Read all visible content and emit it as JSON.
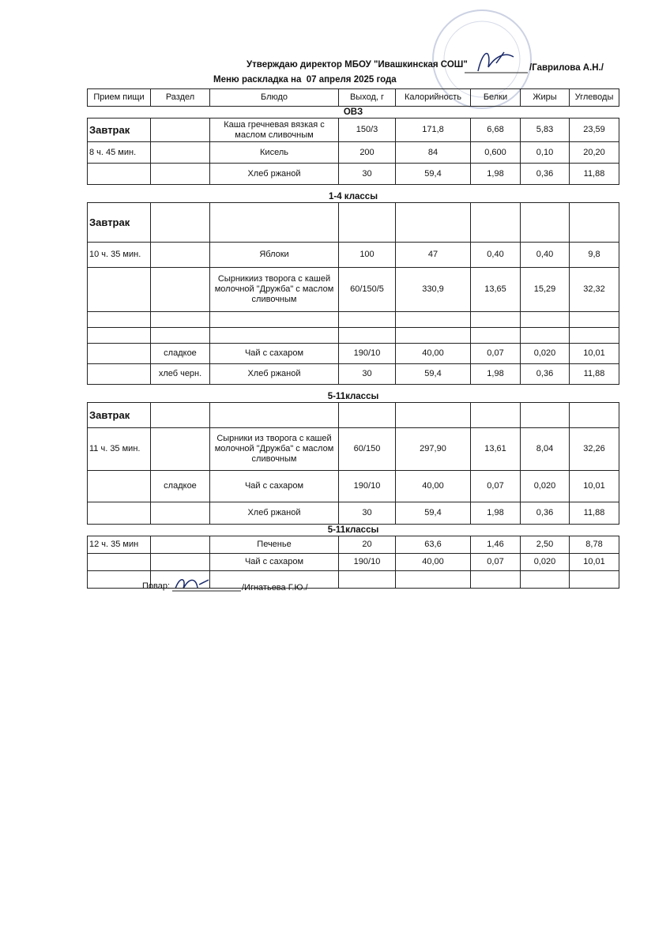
{
  "header": {
    "approval": "Утверждаю директор МБОУ \"Ивашкинская СОШ\"",
    "approver": "/Гаврилова А.Н./",
    "title": "Меню раскладка на  07 апреля 2025 года"
  },
  "columns": [
    "Прием пищи",
    "Раздел",
    "Блюдо",
    "Выход, г",
    "Калорийность",
    "Белки",
    "Жиры",
    "Углеводы"
  ],
  "sections": [
    {
      "title": "ОВЗ",
      "rows": [
        [
          "Завтрак",
          null,
          "Каша гречневая вязкая с маслом сливочным",
          "150/3",
          "171,8",
          "6,68",
          "5,83",
          "23,59"
        ],
        [
          "8 ч. 45 мин.",
          null,
          "Кисель",
          "200",
          "84",
          "0,600",
          "0,10",
          "20,20"
        ],
        [
          null,
          null,
          "Хлеб ржаной",
          "30",
          "59,4",
          "1,98",
          "0,36",
          "11,88"
        ]
      ]
    },
    {
      "title": "1-4 классы",
      "rows": [
        [
          "Завтрак",
          null,
          null,
          null,
          null,
          null,
          null,
          null
        ],
        [
          "10 ч. 35 мин.",
          null,
          "Яблоки",
          "100",
          "47",
          "0,40",
          "0,40",
          "9,8"
        ],
        [
          null,
          null,
          "Сырникииз творога с кашей молочной \"Дружба\" с маслом сливочным",
          "60/150/5",
          "330,9",
          "13,65",
          "15,29",
          "32,32"
        ],
        [
          null,
          null,
          null,
          null,
          null,
          null,
          null,
          null
        ],
        [
          null,
          null,
          null,
          null,
          null,
          null,
          null,
          null
        ],
        [
          null,
          "сладкое",
          "Чай с сахаром",
          "190/10",
          "40,00",
          "0,07",
          "0,020",
          "10,01"
        ],
        [
          null,
          "хлеб черн.",
          "Хлеб ржаной",
          "30",
          "59,4",
          "1,98",
          "0,36",
          "11,88"
        ]
      ]
    },
    {
      "title": "5-11классы",
      "rows": [
        [
          "Завтрак",
          null,
          null,
          null,
          null,
          null,
          null,
          null
        ],
        [
          "11 ч. 35 мин.",
          null,
          "Сырники из творога с кашей молочной \"Дружба\" с маслом сливочным",
          "60/150",
          "297,90",
          "13,61",
          "8,04",
          "32,26"
        ],
        [
          null,
          "сладкое",
          "Чай с сахаром",
          "190/10",
          "40,00",
          "0,07",
          "0,020",
          "10,01"
        ],
        [
          null,
          null,
          "Хлеб ржаной",
          "30",
          "59,4",
          "1,98",
          "0,36",
          "11,88"
        ]
      ]
    },
    {
      "title": "5-11классы",
      "rows": [
        [
          "12 ч. 35 мин",
          null,
          "Печенье",
          "20",
          "63,6",
          "1,46",
          "2,50",
          "8,78"
        ],
        [
          null,
          null,
          "Чай с сахаром",
          "190/10",
          "40,00",
          "0,07",
          "0,020",
          "10,01"
        ],
        [
          null,
          null,
          null,
          null,
          null,
          null,
          null,
          null
        ]
      ]
    }
  ],
  "footer": {
    "cook_label": "Повар:",
    "cook": "/Игнатьева Г.Ю./"
  }
}
